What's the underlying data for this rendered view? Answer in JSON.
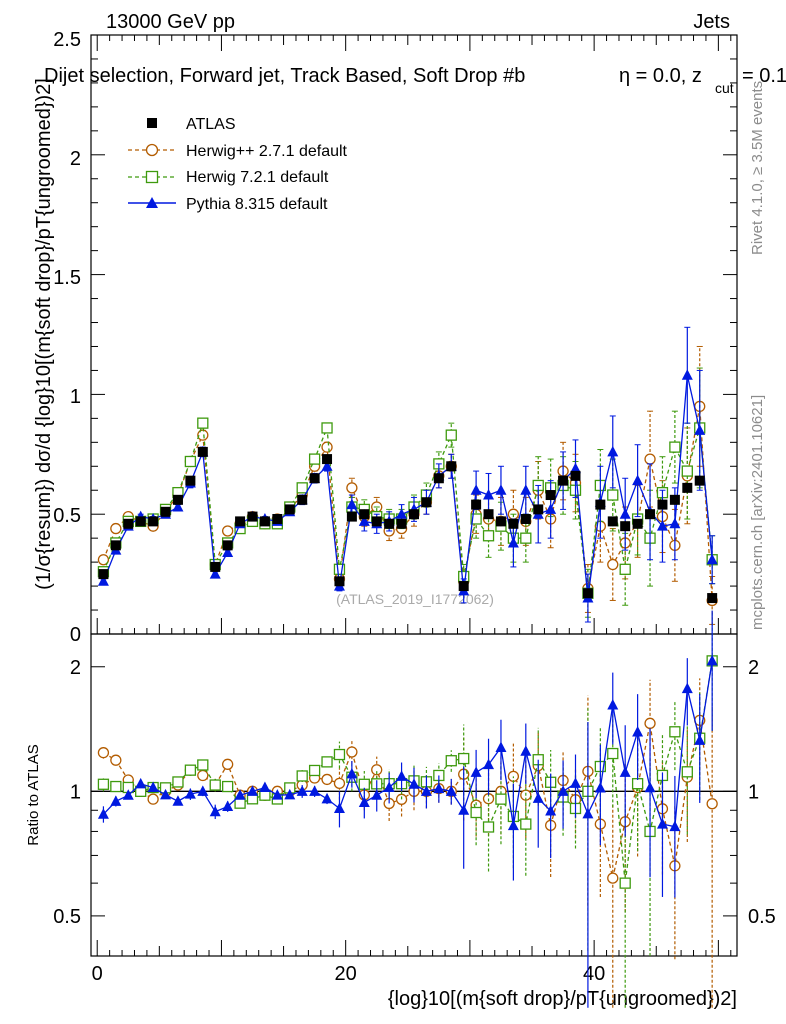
{
  "header": {
    "beam": "13000 GeV pp",
    "category": "Jets",
    "title": "Dijet selection, Forward jet, Track Based, Soft Drop #b",
    "title_tail": "η = 0.0, z",
    "title_sub": "cut",
    "title_end": " = 0.1"
  },
  "side_labels": {
    "rivet": "Rivet 4.1.0, ≥ 3.5M events",
    "mcplots": "mcplots.cern.ch [arXiv:2401.10621]"
  },
  "watermark": "(ATLAS_2019_I1772062)",
  "axes": {
    "ylabel_main": "(1/σ{resum}) dσ/d {log}10[(m{soft drop}/pT{ungroomed})2]",
    "ylabel_ratio": "Ratio to ATLAS",
    "xlabel": "{log}10[(m{soft drop}/pT{ungroomed})2]",
    "main_ticks": [
      "0",
      "0.5",
      "1",
      "1.5",
      "2",
      "2.5"
    ],
    "ratio_ticks_left": [
      "0.5",
      "1",
      "2"
    ],
    "ratio_ticks_right": [
      "0.5",
      "1",
      "2"
    ],
    "x_ticks": [
      "0",
      "20",
      "40"
    ]
  },
  "legend": [
    {
      "label": "ATLAS",
      "color": "#000000",
      "marker": "filled-square"
    },
    {
      "label": "Herwig++ 2.7.1 default",
      "color": "#b35c00",
      "marker": "open-circle"
    },
    {
      "label": "Herwig 7.2.1 default",
      "color": "#3e9a0e",
      "marker": "open-square"
    },
    {
      "label": "Pythia 8.315 default",
      "color": "#0019e0",
      "marker": "filled-triangle"
    }
  ],
  "chart_data": {
    "type": "scatter",
    "title": "Dijet selection, Forward jet, Track Based, Soft Drop",
    "xlabel": "{log}10[(m{soft drop}/pT{ungroomed})2]",
    "ylabel": "(1/sigma{resum}) dsigma/d {log}10[(m{soft drop}/pT{ungroomed})2]",
    "xlim": [
      -0.5,
      51.5
    ],
    "ylim": [
      0,
      2.5
    ],
    "ratio_ylim": [
      0.4,
      2.4
    ],
    "ratio_scale": "log",
    "x": [
      0.5,
      1.5,
      2.5,
      3.5,
      4.5,
      5.5,
      6.5,
      7.5,
      8.5,
      9.5,
      10.5,
      11.5,
      12.5,
      13.5,
      14.5,
      15.5,
      16.5,
      17.5,
      18.5,
      19.5,
      20.5,
      21.5,
      22.5,
      23.5,
      24.5,
      25.5,
      26.5,
      27.5,
      28.5,
      29.5,
      30.5,
      31.5,
      32.5,
      33.5,
      34.5,
      35.5,
      36.5,
      37.5,
      38.5,
      39.5,
      40.5,
      41.5,
      42.5,
      43.5,
      44.5,
      45.5,
      46.5,
      47.5,
      48.5,
      49.5
    ],
    "series": [
      {
        "name": "ATLAS",
        "color": "#000000",
        "values": [
          0.25,
          0.37,
          0.46,
          0.47,
          0.47,
          0.51,
          0.56,
          0.64,
          0.76,
          0.28,
          0.37,
          0.47,
          0.49,
          0.47,
          0.48,
          0.52,
          0.56,
          0.65,
          0.73,
          0.22,
          0.49,
          0.5,
          0.47,
          0.46,
          0.46,
          0.5,
          0.55,
          0.65,
          0.7,
          0.2,
          0.54,
          0.5,
          0.47,
          0.46,
          0.48,
          0.52,
          0.58,
          0.64,
          0.66,
          0.17,
          0.54,
          0.47,
          0.45,
          0.46,
          0.5,
          0.54,
          0.56,
          0.61,
          0.64,
          0.15
        ],
        "errors": [
          0.01,
          0.01,
          0.01,
          0.01,
          0.01,
          0.01,
          0.01,
          0.01,
          0.01,
          0.01,
          0.01,
          0.01,
          0.01,
          0.01,
          0.01,
          0.01,
          0.01,
          0.01,
          0.01,
          0.01,
          0.02,
          0.02,
          0.02,
          0.02,
          0.02,
          0.02,
          0.02,
          0.02,
          0.02,
          0.02,
          0.02,
          0.02,
          0.02,
          0.02,
          0.02,
          0.02,
          0.02,
          0.02,
          0.02,
          0.02,
          0.02,
          0.02,
          0.02,
          0.02,
          0.02,
          0.02,
          0.02,
          0.02,
          0.02,
          0.02
        ]
      },
      {
        "name": "Herwig++ 2.7.1 default",
        "color": "#b35c00",
        "values": [
          0.31,
          0.44,
          0.49,
          0.47,
          0.45,
          0.51,
          0.58,
          0.72,
          0.83,
          0.29,
          0.43,
          0.46,
          0.49,
          0.46,
          0.48,
          0.52,
          0.58,
          0.7,
          0.78,
          0.23,
          0.61,
          0.49,
          0.53,
          0.43,
          0.44,
          0.5,
          0.55,
          0.66,
          0.7,
          0.22,
          0.5,
          0.48,
          0.47,
          0.5,
          0.47,
          0.6,
          0.48,
          0.68,
          0.63,
          0.19,
          0.45,
          0.29,
          0.38,
          0.47,
          0.73,
          0.49,
          0.37,
          0.66,
          0.95,
          0.14
        ],
        "errors": [
          0.01,
          0.01,
          0.01,
          0.01,
          0.01,
          0.01,
          0.01,
          0.02,
          0.02,
          0.01,
          0.01,
          0.01,
          0.01,
          0.01,
          0.01,
          0.01,
          0.02,
          0.02,
          0.02,
          0.02,
          0.04,
          0.04,
          0.04,
          0.04,
          0.04,
          0.05,
          0.05,
          0.05,
          0.05,
          0.05,
          0.08,
          0.09,
          0.1,
          0.1,
          0.1,
          0.12,
          0.12,
          0.12,
          0.12,
          0.1,
          0.15,
          0.15,
          0.15,
          0.15,
          0.2,
          0.15,
          0.15,
          0.2,
          0.25,
          0.1
        ]
      },
      {
        "name": "Herwig 7.2.1 default",
        "color": "#3e9a0e",
        "values": [
          0.26,
          0.38,
          0.47,
          0.47,
          0.48,
          0.52,
          0.59,
          0.72,
          0.88,
          0.29,
          0.38,
          0.44,
          0.47,
          0.46,
          0.46,
          0.53,
          0.61,
          0.73,
          0.86,
          0.27,
          0.53,
          0.52,
          0.49,
          0.48,
          0.48,
          0.53,
          0.58,
          0.71,
          0.83,
          0.24,
          0.48,
          0.41,
          0.45,
          0.4,
          0.4,
          0.62,
          0.61,
          0.62,
          0.6,
          0.17,
          0.62,
          0.58,
          0.27,
          0.48,
          0.4,
          0.59,
          0.78,
          0.68,
          0.86,
          0.31
        ],
        "errors": [
          0.01,
          0.01,
          0.01,
          0.01,
          0.01,
          0.01,
          0.01,
          0.02,
          0.02,
          0.01,
          0.01,
          0.01,
          0.01,
          0.01,
          0.01,
          0.01,
          0.02,
          0.02,
          0.02,
          0.02,
          0.04,
          0.04,
          0.04,
          0.04,
          0.04,
          0.05,
          0.05,
          0.05,
          0.05,
          0.05,
          0.08,
          0.09,
          0.1,
          0.1,
          0.1,
          0.12,
          0.12,
          0.12,
          0.12,
          0.1,
          0.15,
          0.15,
          0.15,
          0.15,
          0.2,
          0.15,
          0.15,
          0.2,
          0.25,
          0.1
        ]
      },
      {
        "name": "Pythia 8.315 default",
        "color": "#0019e0",
        "values": [
          0.22,
          0.35,
          0.45,
          0.49,
          0.48,
          0.5,
          0.53,
          0.63,
          0.76,
          0.25,
          0.34,
          0.46,
          0.49,
          0.48,
          0.47,
          0.51,
          0.56,
          0.65,
          0.7,
          0.2,
          0.54,
          0.47,
          0.46,
          0.47,
          0.5,
          0.52,
          0.55,
          0.66,
          0.7,
          0.18,
          0.6,
          0.58,
          0.6,
          0.38,
          0.6,
          0.5,
          0.52,
          0.64,
          0.69,
          0.15,
          0.55,
          0.76,
          0.5,
          0.64,
          0.51,
          0.45,
          0.46,
          1.08,
          0.85,
          0.31
        ],
        "errors": [
          0.01,
          0.01,
          0.01,
          0.01,
          0.01,
          0.01,
          0.01,
          0.02,
          0.02,
          0.01,
          0.01,
          0.01,
          0.01,
          0.01,
          0.01,
          0.01,
          0.02,
          0.02,
          0.02,
          0.02,
          0.04,
          0.04,
          0.04,
          0.04,
          0.04,
          0.05,
          0.05,
          0.05,
          0.05,
          0.05,
          0.08,
          0.09,
          0.1,
          0.1,
          0.1,
          0.12,
          0.12,
          0.12,
          0.12,
          0.1,
          0.15,
          0.15,
          0.15,
          0.15,
          0.2,
          0.15,
          0.15,
          0.2,
          0.25,
          0.1
        ]
      }
    ]
  }
}
